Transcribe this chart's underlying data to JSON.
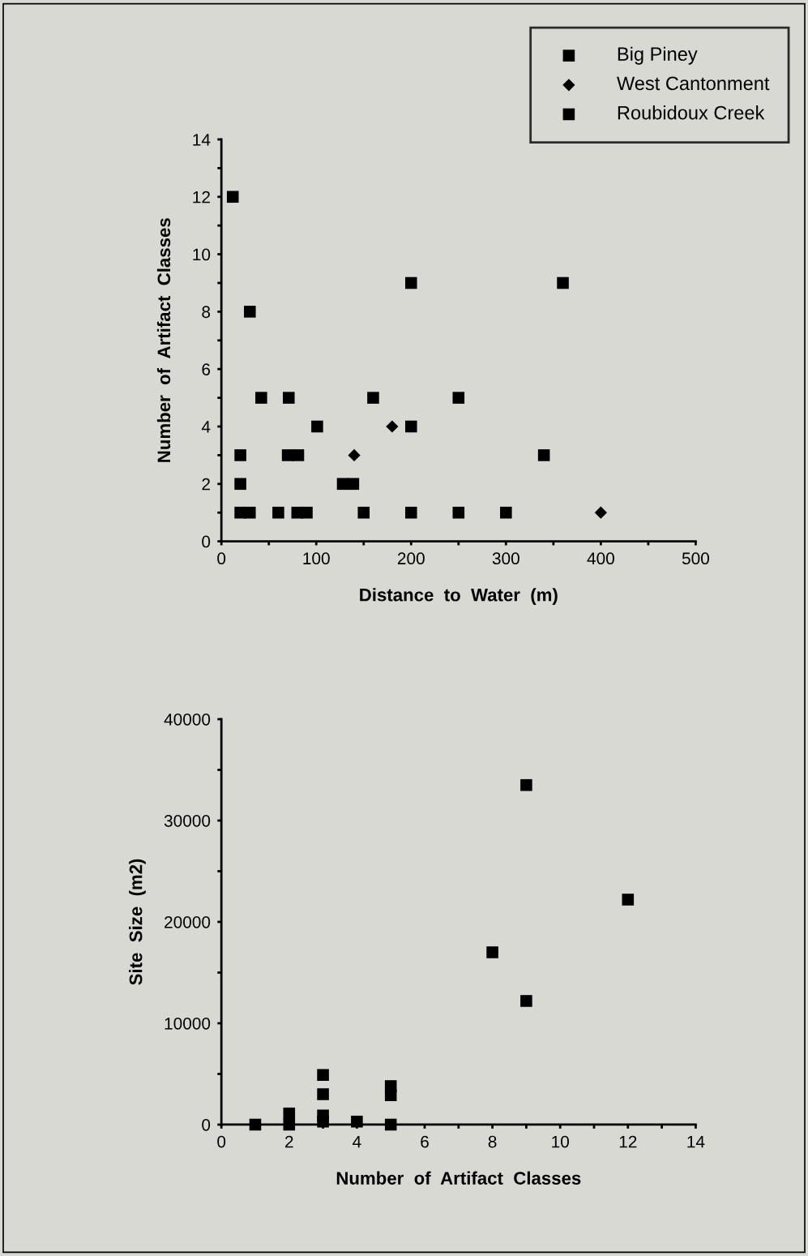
{
  "chart_data": [
    {
      "type": "scatter",
      "xlabel": "Distance  to  Water  (m)",
      "ylabel": "Number  of  Artifact  Classes",
      "legend": "top right",
      "grid": false,
      "xlim": [
        0,
        500
      ],
      "ylim": [
        0,
        14
      ],
      "xticks": [
        0,
        {
          "value": 50,
          "label": null
        },
        100,
        {
          "value": 150,
          "label": null
        },
        200,
        {
          "value": 250,
          "label": null
        },
        300,
        {
          "value": 350,
          "label": null
        },
        400,
        {
          "value": 450,
          "label": null
        },
        500
      ],
      "yticks": [
        0,
        {
          "value": 1,
          "label": null
        },
        2,
        {
          "value": 3,
          "label": null
        },
        4,
        {
          "value": 5,
          "label": null
        },
        6,
        {
          "value": 7,
          "label": null
        },
        8,
        {
          "value": 9,
          "label": null
        },
        10,
        {
          "value": 11,
          "label": null
        },
        12,
        {
          "value": 13,
          "label": null
        },
        14
      ],
      "series": [
        {
          "name": "Big Piney",
          "color": "#000000",
          "marker": "square",
          "x": [
            60,
            80
          ],
          "values": [
            1,
            1
          ]
        },
        {
          "name": "West Cantonment",
          "color": "#000000",
          "marker": "diamond",
          "x": [
            140,
            180,
            400
          ],
          "values": [
            3,
            4,
            1
          ]
        },
        {
          "name": "Roubidoux Creek",
          "color": "#000000",
          "marker": "square",
          "x": [
            12,
            30,
            20,
            20,
            20,
            30,
            42,
            71,
            70,
            81,
            101,
            128,
            139,
            90,
            150,
            160,
            200,
            200,
            200,
            250,
            250,
            300,
            340,
            360
          ],
          "values": [
            12,
            8,
            3,
            2,
            1,
            1,
            5,
            5,
            3,
            3,
            4,
            2,
            2,
            1,
            1,
            5,
            9,
            4,
            1,
            5,
            1,
            1,
            3,
            9
          ]
        }
      ]
    },
    {
      "type": "scatter",
      "xlabel": "Number  of  Artifact  Classes",
      "ylabel": "Site  Size  (m2)",
      "grid": false,
      "xlim": [
        0,
        14
      ],
      "ylim": [
        0,
        40000
      ],
      "xticks": [
        0,
        {
          "value": 1,
          "label": null
        },
        2,
        {
          "value": 3,
          "label": null
        },
        4,
        {
          "value": 5,
          "label": null
        },
        6,
        {
          "value": 7,
          "label": null
        },
        8,
        {
          "value": 9,
          "label": null
        },
        10,
        {
          "value": 11,
          "label": null
        },
        12,
        {
          "value": 13,
          "label": null
        },
        14
      ],
      "yticks": [
        0,
        {
          "value": 5000,
          "label": null
        },
        10000,
        {
          "value": 15000,
          "label": null
        },
        20000,
        {
          "value": 25000,
          "label": null
        },
        30000,
        {
          "value": 35000,
          "label": null
        },
        40000
      ],
      "series": [
        {
          "color": "#000000",
          "marker": "square",
          "x": [
            1,
            2,
            2,
            3,
            3,
            3,
            3,
            4,
            5,
            5,
            5,
            8,
            9,
            9,
            12
          ],
          "values": [
            0,
            1100,
            0,
            4900,
            3000,
            900,
            300,
            300,
            3800,
            2900,
            0,
            17000,
            33500,
            12200,
            22200
          ]
        }
      ]
    }
  ]
}
